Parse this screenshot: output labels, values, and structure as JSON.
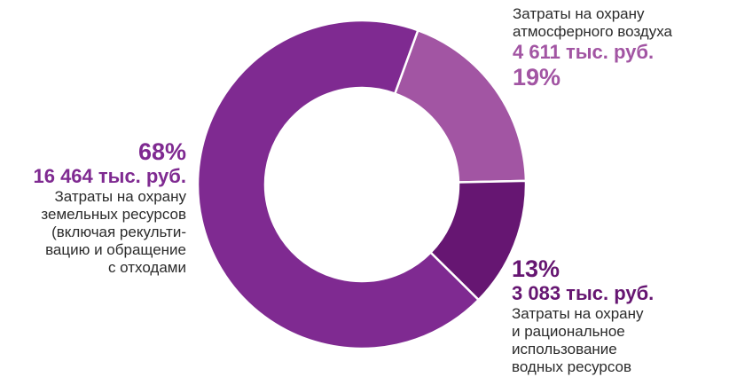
{
  "chart_data": {
    "type": "pie",
    "variant": "donut",
    "categories": [
      "Затраты на охрану атмосферного воздуха",
      "Затраты на охрану и рациональное использование водных ресурсов",
      "Затраты на охрану земельных ресурсов (включая рекультивацию и обращение с отходами"
    ],
    "values": [
      4611,
      3083,
      16464
    ],
    "percents": [
      "19%",
      "13%",
      "68%"
    ],
    "amount_labels": [
      "4 611 тыс. руб.",
      "3 083 тыс. руб.",
      "16 464 тыс. руб."
    ],
    "colors": [
      "#a255a3",
      "#661672",
      "#7f2a91"
    ]
  },
  "labels": {
    "land": {
      "pct": "68%",
      "amount": "16 464 тыс. руб.",
      "desc": [
        "Затраты на охрану",
        "земельных ресурсов",
        "(включая рекульти-",
        "вацию и обращение",
        "с отходами"
      ]
    },
    "air": {
      "desc": [
        "Затраты на охрану",
        "атмосферного воздуха"
      ],
      "amount": "4 611 тыс. руб.",
      "pct": "19%"
    },
    "water": {
      "pct": "13%",
      "amount": "3 083 тыс. руб.",
      "desc": [
        "Затраты на охрану",
        "и рациональное",
        "использование",
        "водных ресурсов"
      ]
    }
  }
}
